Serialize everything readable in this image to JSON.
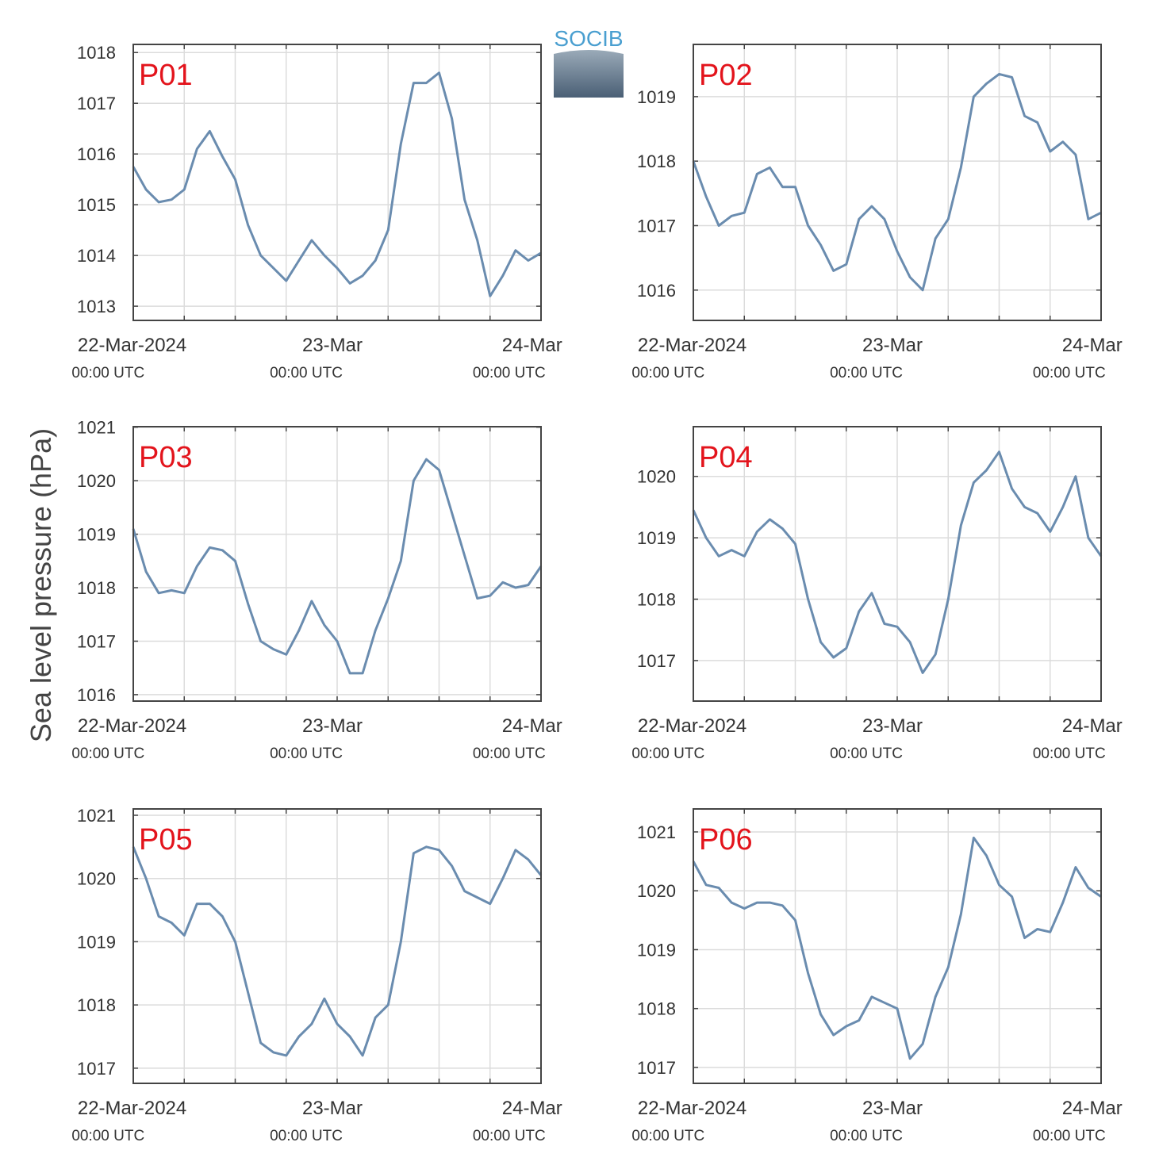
{
  "ylabel": "Sea level pressure (hPa)",
  "logo": "SOCIB",
  "chart_data": [
    {
      "type": "line",
      "title": "P01",
      "color": "#6a8caf",
      "x": [
        "2024-03-21T16:00",
        "2024-03-21T18:00",
        "2024-03-21T20:00",
        "2024-03-21T22:00",
        "2024-03-22T00:00",
        "2024-03-22T02:00",
        "2024-03-22T04:00",
        "2024-03-22T06:00",
        "2024-03-22T08:00",
        "2024-03-22T10:00",
        "2024-03-22T12:00",
        "2024-03-22T14:00",
        "2024-03-22T16:00",
        "2024-03-22T18:00",
        "2024-03-22T20:00",
        "2024-03-22T22:00",
        "2024-03-23T00:00",
        "2024-03-23T02:00",
        "2024-03-23T04:00",
        "2024-03-23T06:00",
        "2024-03-23T08:00",
        "2024-03-23T10:00",
        "2024-03-23T12:00",
        "2024-03-23T14:00",
        "2024-03-23T16:00",
        "2024-03-23T18:00",
        "2024-03-23T20:00",
        "2024-03-23T22:00",
        "2024-03-24T00:00",
        "2024-03-24T02:00",
        "2024-03-24T04:00",
        "2024-03-24T06:00",
        "2024-03-24T08:00"
      ],
      "values": [
        1015.75,
        1015.3,
        1015.05,
        1015.1,
        1015.3,
        1016.1,
        1016.45,
        1015.95,
        1015.5,
        1014.6,
        1014.0,
        1013.75,
        1013.5,
        1013.9,
        1014.3,
        1014.0,
        1013.75,
        1013.45,
        1013.6,
        1013.9,
        1014.5,
        1016.2,
        1017.4,
        1017.4,
        1017.6,
        1016.7,
        1015.1,
        1014.3,
        1013.2,
        1013.6,
        1014.1,
        1013.9,
        1014.05
      ],
      "xlim": [
        "2024-03-21T16:00",
        "2024-03-24T08:00"
      ],
      "xticks": [
        {
          "value": "2024-03-22T00:00",
          "label": [
            "22-Mar-2024",
            "00:00 UTC"
          ]
        },
        {
          "value": "2024-03-22T08:00",
          "label": null
        },
        {
          "value": "2024-03-22T16:00",
          "label": null
        },
        {
          "value": "2024-03-23T00:00",
          "label": [
            "23-Mar",
            "00:00 UTC"
          ]
        },
        {
          "value": "2024-03-23T08:00",
          "label": null
        },
        {
          "value": "2024-03-23T16:00",
          "label": null
        },
        {
          "value": "2024-03-24T00:00",
          "label": [
            "24-Mar",
            "00:00 UTC"
          ]
        }
      ],
      "ylim": [
        1012.72,
        1018.16
      ],
      "yticks": [
        1013,
        1014,
        1015,
        1016,
        1017,
        1018
      ],
      "grid": true
    },
    {
      "type": "line",
      "title": "P02",
      "color": "#6a8caf",
      "x": [
        "2024-03-21T16:00",
        "2024-03-21T18:00",
        "2024-03-21T20:00",
        "2024-03-21T22:00",
        "2024-03-22T00:00",
        "2024-03-22T02:00",
        "2024-03-22T04:00",
        "2024-03-22T06:00",
        "2024-03-22T08:00",
        "2024-03-22T10:00",
        "2024-03-22T12:00",
        "2024-03-22T14:00",
        "2024-03-22T16:00",
        "2024-03-22T18:00",
        "2024-03-22T20:00",
        "2024-03-22T22:00",
        "2024-03-23T00:00",
        "2024-03-23T02:00",
        "2024-03-23T04:00",
        "2024-03-23T06:00",
        "2024-03-23T08:00",
        "2024-03-23T10:00",
        "2024-03-23T12:00",
        "2024-03-23T14:00",
        "2024-03-23T16:00",
        "2024-03-23T18:00",
        "2024-03-23T20:00",
        "2024-03-23T22:00",
        "2024-03-24T00:00",
        "2024-03-24T02:00",
        "2024-03-24T04:00",
        "2024-03-24T06:00",
        "2024-03-24T08:00"
      ],
      "values": [
        1018.0,
        1017.45,
        1017.0,
        1017.15,
        1017.2,
        1017.8,
        1017.9,
        1017.6,
        1017.6,
        1017.0,
        1016.7,
        1016.3,
        1016.4,
        1017.1,
        1017.3,
        1017.1,
        1016.6,
        1016.2,
        1016.0,
        1016.8,
        1017.1,
        1017.9,
        1019.0,
        1019.2,
        1019.35,
        1019.3,
        1018.7,
        1018.6,
        1018.15,
        1018.3,
        1018.1,
        1017.1,
        1017.2
      ],
      "xlim": [
        "2024-03-21T16:00",
        "2024-03-24T08:00"
      ],
      "xticks": [
        {
          "value": "2024-03-22T00:00",
          "label": [
            "22-Mar-2024",
            "00:00 UTC"
          ]
        },
        {
          "value": "2024-03-22T08:00",
          "label": null
        },
        {
          "value": "2024-03-22T16:00",
          "label": null
        },
        {
          "value": "2024-03-23T00:00",
          "label": [
            "23-Mar",
            "00:00 UTC"
          ]
        },
        {
          "value": "2024-03-23T08:00",
          "label": null
        },
        {
          "value": "2024-03-23T16:00",
          "label": null
        },
        {
          "value": "2024-03-24T00:00",
          "label": [
            "24-Mar",
            "00:00 UTC"
          ]
        }
      ],
      "ylim": [
        1015.53,
        1019.81
      ],
      "yticks": [
        1016,
        1017,
        1018,
        1019
      ],
      "grid": true
    },
    {
      "type": "line",
      "title": "P03",
      "color": "#6a8caf",
      "x": [
        "2024-03-21T16:00",
        "2024-03-21T18:00",
        "2024-03-21T20:00",
        "2024-03-21T22:00",
        "2024-03-22T00:00",
        "2024-03-22T02:00",
        "2024-03-22T04:00",
        "2024-03-22T06:00",
        "2024-03-22T08:00",
        "2024-03-22T10:00",
        "2024-03-22T12:00",
        "2024-03-22T14:00",
        "2024-03-22T16:00",
        "2024-03-22T18:00",
        "2024-03-22T20:00",
        "2024-03-22T22:00",
        "2024-03-23T00:00",
        "2024-03-23T02:00",
        "2024-03-23T04:00",
        "2024-03-23T06:00",
        "2024-03-23T08:00",
        "2024-03-23T10:00",
        "2024-03-23T12:00",
        "2024-03-23T14:00",
        "2024-03-23T16:00",
        "2024-03-23T18:00",
        "2024-03-23T20:00",
        "2024-03-23T22:00",
        "2024-03-24T00:00",
        "2024-03-24T02:00",
        "2024-03-24T04:00",
        "2024-03-24T06:00",
        "2024-03-24T08:00"
      ],
      "values": [
        1019.1,
        1018.3,
        1017.9,
        1017.95,
        1017.9,
        1018.4,
        1018.75,
        1018.7,
        1018.5,
        1017.7,
        1017.0,
        1016.85,
        1016.75,
        1017.2,
        1017.75,
        1017.3,
        1017.0,
        1016.4,
        1016.4,
        1017.2,
        1017.8,
        1018.5,
        1020.0,
        1020.4,
        1020.2,
        1019.4,
        1018.6,
        1017.8,
        1017.85,
        1018.1,
        1018.0,
        1018.05,
        1018.4
      ],
      "xlim": [
        "2024-03-21T16:00",
        "2024-03-24T08:00"
      ],
      "xticks": [
        {
          "value": "2024-03-22T00:00",
          "label": [
            "22-Mar-2024",
            "00:00 UTC"
          ]
        },
        {
          "value": "2024-03-22T08:00",
          "label": null
        },
        {
          "value": "2024-03-22T16:00",
          "label": null
        },
        {
          "value": "2024-03-23T00:00",
          "label": [
            "23-Mar",
            "00:00 UTC"
          ]
        },
        {
          "value": "2024-03-23T08:00",
          "label": null
        },
        {
          "value": "2024-03-23T16:00",
          "label": null
        },
        {
          "value": "2024-03-24T00:00",
          "label": [
            "24-Mar",
            "00:00 UTC"
          ]
        }
      ],
      "ylim": [
        1015.88,
        1021.01
      ],
      "yticks": [
        1016,
        1017,
        1018,
        1019,
        1020,
        1021
      ],
      "grid": true
    },
    {
      "type": "line",
      "title": "P04",
      "color": "#6a8caf",
      "x": [
        "2024-03-21T16:00",
        "2024-03-21T18:00",
        "2024-03-21T20:00",
        "2024-03-21T22:00",
        "2024-03-22T00:00",
        "2024-03-22T02:00",
        "2024-03-22T04:00",
        "2024-03-22T06:00",
        "2024-03-22T08:00",
        "2024-03-22T10:00",
        "2024-03-22T12:00",
        "2024-03-22T14:00",
        "2024-03-22T16:00",
        "2024-03-22T18:00",
        "2024-03-22T20:00",
        "2024-03-22T22:00",
        "2024-03-23T00:00",
        "2024-03-23T02:00",
        "2024-03-23T04:00",
        "2024-03-23T06:00",
        "2024-03-23T08:00",
        "2024-03-23T10:00",
        "2024-03-23T12:00",
        "2024-03-23T14:00",
        "2024-03-23T16:00",
        "2024-03-23T18:00",
        "2024-03-23T20:00",
        "2024-03-23T22:00",
        "2024-03-24T00:00",
        "2024-03-24T02:00",
        "2024-03-24T04:00",
        "2024-03-24T06:00",
        "2024-03-24T08:00"
      ],
      "values": [
        1019.45,
        1019.0,
        1018.7,
        1018.8,
        1018.7,
        1019.1,
        1019.3,
        1019.15,
        1018.9,
        1018.0,
        1017.3,
        1017.05,
        1017.2,
        1017.8,
        1018.1,
        1017.6,
        1017.55,
        1017.3,
        1016.8,
        1017.1,
        1018.0,
        1019.2,
        1019.9,
        1020.1,
        1020.4,
        1019.8,
        1019.5,
        1019.4,
        1019.1,
        1019.5,
        1020.0,
        1019.0,
        1018.7
      ],
      "xlim": [
        "2024-03-21T16:00",
        "2024-03-24T08:00"
      ],
      "xticks": [
        {
          "value": "2024-03-22T00:00",
          "label": [
            "22-Mar-2024",
            "00:00 UTC"
          ]
        },
        {
          "value": "2024-03-22T08:00",
          "label": null
        },
        {
          "value": "2024-03-22T16:00",
          "label": null
        },
        {
          "value": "2024-03-23T00:00",
          "label": [
            "23-Mar",
            "00:00 UTC"
          ]
        },
        {
          "value": "2024-03-23T08:00",
          "label": null
        },
        {
          "value": "2024-03-23T16:00",
          "label": null
        },
        {
          "value": "2024-03-24T00:00",
          "label": [
            "24-Mar",
            "00:00 UTC"
          ]
        }
      ],
      "ylim": [
        1016.34,
        1020.81
      ],
      "yticks": [
        1017,
        1018,
        1019,
        1020
      ],
      "grid": true
    },
    {
      "type": "line",
      "title": "P05",
      "color": "#6a8caf",
      "x": [
        "2024-03-21T16:00",
        "2024-03-21T18:00",
        "2024-03-21T20:00",
        "2024-03-21T22:00",
        "2024-03-22T00:00",
        "2024-03-22T02:00",
        "2024-03-22T04:00",
        "2024-03-22T06:00",
        "2024-03-22T08:00",
        "2024-03-22T10:00",
        "2024-03-22T12:00",
        "2024-03-22T14:00",
        "2024-03-22T16:00",
        "2024-03-22T18:00",
        "2024-03-22T20:00",
        "2024-03-22T22:00",
        "2024-03-23T00:00",
        "2024-03-23T02:00",
        "2024-03-23T04:00",
        "2024-03-23T06:00",
        "2024-03-23T08:00",
        "2024-03-23T10:00",
        "2024-03-23T12:00",
        "2024-03-23T14:00",
        "2024-03-23T16:00",
        "2024-03-23T18:00",
        "2024-03-23T20:00",
        "2024-03-23T22:00",
        "2024-03-24T00:00",
        "2024-03-24T02:00",
        "2024-03-24T04:00",
        "2024-03-24T06:00",
        "2024-03-24T08:00"
      ],
      "values": [
        1020.5,
        1020.0,
        1019.4,
        1019.3,
        1019.1,
        1019.6,
        1019.6,
        1019.4,
        1019.0,
        1018.2,
        1017.4,
        1017.25,
        1017.2,
        1017.5,
        1017.7,
        1018.1,
        1017.7,
        1017.5,
        1017.2,
        1017.8,
        1018.0,
        1019.0,
        1020.4,
        1020.5,
        1020.45,
        1020.2,
        1019.8,
        1019.7,
        1019.6,
        1020.0,
        1020.45,
        1020.3,
        1020.05
      ],
      "xlim": [
        "2024-03-21T16:00",
        "2024-03-24T08:00"
      ],
      "xticks": [
        {
          "value": "2024-03-22T00:00",
          "label": [
            "22-Mar-2024",
            "00:00 UTC"
          ]
        },
        {
          "value": "2024-03-22T08:00",
          "label": null
        },
        {
          "value": "2024-03-22T16:00",
          "label": null
        },
        {
          "value": "2024-03-23T00:00",
          "label": [
            "23-Mar",
            "00:00 UTC"
          ]
        },
        {
          "value": "2024-03-23T08:00",
          "label": null
        },
        {
          "value": "2024-03-23T16:00",
          "label": null
        },
        {
          "value": "2024-03-24T00:00",
          "label": [
            "24-Mar",
            "00:00 UTC"
          ]
        }
      ],
      "ylim": [
        1016.76,
        1021.1
      ],
      "yticks": [
        1017,
        1018,
        1019,
        1020,
        1021
      ],
      "grid": true
    },
    {
      "type": "line",
      "title": "P06",
      "color": "#6a8caf",
      "x": [
        "2024-03-21T16:00",
        "2024-03-21T18:00",
        "2024-03-21T20:00",
        "2024-03-21T22:00",
        "2024-03-22T00:00",
        "2024-03-22T02:00",
        "2024-03-22T04:00",
        "2024-03-22T06:00",
        "2024-03-22T08:00",
        "2024-03-22T10:00",
        "2024-03-22T12:00",
        "2024-03-22T14:00",
        "2024-03-22T16:00",
        "2024-03-22T18:00",
        "2024-03-22T20:00",
        "2024-03-22T22:00",
        "2024-03-23T00:00",
        "2024-03-23T02:00",
        "2024-03-23T04:00",
        "2024-03-23T06:00",
        "2024-03-23T08:00",
        "2024-03-23T10:00",
        "2024-03-23T12:00",
        "2024-03-23T14:00",
        "2024-03-23T16:00",
        "2024-03-23T18:00",
        "2024-03-23T20:00",
        "2024-03-23T22:00",
        "2024-03-24T00:00",
        "2024-03-24T02:00",
        "2024-03-24T04:00",
        "2024-03-24T06:00",
        "2024-03-24T08:00"
      ],
      "values": [
        1020.5,
        1020.1,
        1020.05,
        1019.8,
        1019.7,
        1019.8,
        1019.8,
        1019.75,
        1019.5,
        1018.6,
        1017.9,
        1017.55,
        1017.7,
        1017.8,
        1018.2,
        1018.1,
        1018.0,
        1017.15,
        1017.4,
        1018.2,
        1018.7,
        1019.6,
        1020.9,
        1020.6,
        1020.1,
        1019.9,
        1019.2,
        1019.35,
        1019.3,
        1019.8,
        1020.4,
        1020.05,
        1019.9
      ],
      "xlim": [
        "2024-03-21T16:00",
        "2024-03-24T08:00"
      ],
      "xticks": [
        {
          "value": "2024-03-22T00:00",
          "label": [
            "22-Mar-2024",
            "00:00 UTC"
          ]
        },
        {
          "value": "2024-03-22T08:00",
          "label": null
        },
        {
          "value": "2024-03-22T16:00",
          "label": null
        },
        {
          "value": "2024-03-23T00:00",
          "label": [
            "23-Mar",
            "00:00 UTC"
          ]
        },
        {
          "value": "2024-03-23T08:00",
          "label": null
        },
        {
          "value": "2024-03-23T16:00",
          "label": null
        },
        {
          "value": "2024-03-24T00:00",
          "label": [
            "24-Mar",
            "00:00 UTC"
          ]
        }
      ],
      "ylim": [
        1016.73,
        1021.39
      ],
      "yticks": [
        1017,
        1018,
        1019,
        1020,
        1021
      ],
      "grid": true
    }
  ]
}
